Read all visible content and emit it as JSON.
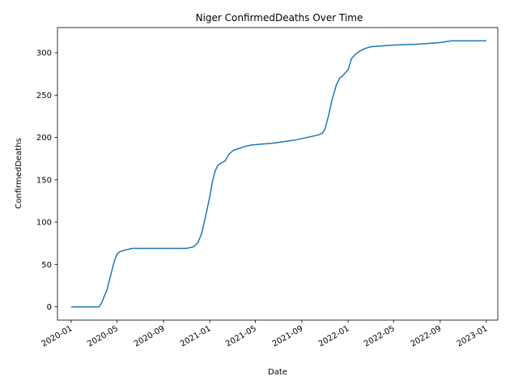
{
  "chart_data": {
    "type": "line",
    "title": "Niger  ConfirmedDeaths Over Time",
    "xlabel": "Date",
    "ylabel": "ConfirmedDeaths",
    "xlim": [
      "2019-11-26",
      "2023-01-31"
    ],
    "ylim": [
      -15.7,
      329.7
    ],
    "x_ticks": [
      "2020-01",
      "2020-05",
      "2020-09",
      "2021-01",
      "2021-05",
      "2021-09",
      "2022-01",
      "2022-05",
      "2022-09",
      "2023-01"
    ],
    "y_ticks": [
      0,
      50,
      100,
      150,
      200,
      250,
      300
    ],
    "grid": false,
    "line_color": "#1f77b4",
    "series": [
      {
        "x": [
          "2020-01-01",
          "2020-03-15",
          "2020-03-22",
          "2020-03-28",
          "2020-04-05",
          "2020-04-10",
          "2020-04-15",
          "2020-04-20",
          "2020-04-25",
          "2020-05-01",
          "2020-05-08",
          "2020-05-15",
          "2020-05-22",
          "2020-06-01",
          "2020-06-10",
          "2020-06-25",
          "2020-07-15",
          "2020-08-15",
          "2020-10-01",
          "2020-11-01",
          "2020-11-10",
          "2020-11-20",
          "2020-12-01",
          "2020-12-10",
          "2020-12-20",
          "2021-01-01",
          "2021-01-08",
          "2021-01-15",
          "2021-01-22",
          "2021-02-01",
          "2021-02-10",
          "2021-02-20",
          "2021-03-05",
          "2021-03-20",
          "2021-04-01",
          "2021-04-20",
          "2021-05-15",
          "2021-06-15",
          "2021-07-15",
          "2021-08-15",
          "2021-09-15",
          "2021-10-15",
          "2021-10-25",
          "2021-11-01",
          "2021-11-10",
          "2021-11-20",
          "2021-12-01",
          "2021-12-10",
          "2021-12-20",
          "2022-01-01",
          "2022-01-10",
          "2022-01-20",
          "2022-02-01",
          "2022-02-15",
          "2022-03-01",
          "2022-04-01",
          "2022-05-01",
          "2022-07-01",
          "2022-09-01",
          "2022-10-01",
          "2023-01-01"
        ],
        "y": [
          0,
          0,
          5,
          12,
          20,
          30,
          38,
          47,
          55,
          62,
          65,
          66,
          67,
          68,
          69,
          69,
          69,
          69,
          69,
          69,
          70,
          71,
          76,
          86,
          105,
          130,
          148,
          160,
          167,
          170,
          172,
          180,
          185,
          187,
          189,
          191,
          192,
          193,
          195,
          197,
          200,
          203,
          205,
          210,
          225,
          245,
          262,
          270,
          274,
          280,
          293,
          298,
          302,
          305,
          307,
          308,
          309,
          310,
          312,
          314,
          314
        ]
      }
    ]
  }
}
